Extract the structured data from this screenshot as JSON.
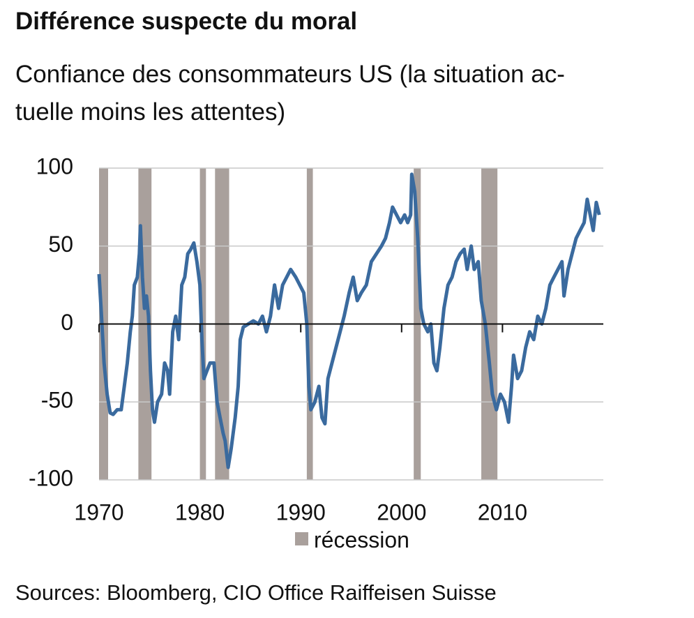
{
  "chart_data": {
    "type": "line",
    "title": "Différence suspecte du moral",
    "subtitle": [
      "Confiance des consommateurs US (la situation ac-",
      "tuelle moins les attentes)"
    ],
    "source": "Sources: Bloomberg, CIO Office Raiffeisen Suisse",
    "xlim": [
      1970,
      2020
    ],
    "xticks": [
      1970,
      1980,
      1990,
      2000,
      2010
    ],
    "ylim": [
      -100,
      100
    ],
    "yticks": [
      -100,
      -50,
      0,
      50,
      100
    ],
    "grid": true,
    "recessions": {
      "name": "récession",
      "color": "#a9a09c",
      "ranges": [
        [
          1970.0,
          1970.9
        ],
        [
          1973.9,
          1975.2
        ],
        [
          1980.0,
          1980.6
        ],
        [
          1981.5,
          1982.9
        ],
        [
          1990.6,
          1991.2
        ],
        [
          2001.2,
          2001.9
        ],
        [
          2007.9,
          2009.5
        ]
      ]
    },
    "series": [
      {
        "color": "#3a6a9e",
        "x": [
          1970.0,
          1970.2,
          1970.5,
          1970.8,
          1971.1,
          1971.4,
          1971.8,
          1972.2,
          1972.5,
          1972.8,
          1973.1,
          1973.3,
          1973.5,
          1973.8,
          1974.0,
          1974.1,
          1974.3,
          1974.5,
          1974.7,
          1974.9,
          1975.1,
          1975.3,
          1975.5,
          1975.8,
          1976.2,
          1976.5,
          1976.8,
          1977.0,
          1977.3,
          1977.6,
          1977.9,
          1978.2,
          1978.5,
          1978.8,
          1979.1,
          1979.4,
          1979.7,
          1980.0,
          1980.2,
          1980.4,
          1980.7,
          1981.0,
          1981.4,
          1981.7,
          1982.0,
          1982.3,
          1982.5,
          1982.8,
          1983.1,
          1983.5,
          1983.8,
          1984.0,
          1984.3,
          1984.8,
          1985.3,
          1985.8,
          1986.2,
          1986.6,
          1987.0,
          1987.4,
          1987.8,
          1988.2,
          1988.6,
          1989.0,
          1989.5,
          1989.9,
          1990.3,
          1990.6,
          1990.8,
          1991.0,
          1991.4,
          1991.8,
          1992.1,
          1992.4,
          1992.7,
          1993.1,
          1993.5,
          1993.9,
          1994.3,
          1994.8,
          1995.2,
          1995.6,
          1996.0,
          1996.5,
          1997.0,
          1997.5,
          1998.0,
          1998.4,
          1998.8,
          1999.1,
          1999.5,
          1999.9,
          2000.3,
          2000.6,
          2000.9,
          2001.0,
          2001.3,
          2001.6,
          2001.9,
          2002.2,
          2002.6,
          2002.9,
          2003.2,
          2003.5,
          2003.8,
          2004.2,
          2004.6,
          2005.0,
          2005.4,
          2005.8,
          2006.2,
          2006.5,
          2006.9,
          2007.2,
          2007.6,
          2007.9,
          2008.3,
          2008.7,
          2009.0,
          2009.4,
          2009.8,
          2010.2,
          2010.6,
          2010.9,
          2011.1,
          2011.5,
          2011.9,
          2012.3,
          2012.7,
          2013.1,
          2013.5,
          2013.9,
          2014.3,
          2014.7,
          2015.1,
          2015.5,
          2015.9,
          2016.1,
          2016.5,
          2016.9,
          2017.3,
          2017.7,
          2018.1,
          2018.4,
          2018.7,
          2019.0,
          2019.3,
          2019.6
        ],
        "values": [
          32,
          10,
          -25,
          -45,
          -57,
          -58,
          -55,
          -55,
          -40,
          -25,
          -5,
          5,
          25,
          30,
          45,
          63,
          30,
          10,
          18,
          5,
          -30,
          -55,
          -63,
          -50,
          -45,
          -25,
          -30,
          -45,
          -5,
          5,
          -10,
          25,
          30,
          45,
          48,
          52,
          40,
          25,
          -10,
          -35,
          -30,
          -25,
          -25,
          -50,
          -60,
          -70,
          -75,
          -92,
          -80,
          -60,
          -40,
          -10,
          -2,
          0,
          2,
          0,
          5,
          -5,
          5,
          25,
          10,
          25,
          30,
          35,
          30,
          25,
          20,
          0,
          -40,
          -55,
          -50,
          -40,
          -60,
          -64,
          -35,
          -25,
          -15,
          -5,
          5,
          20,
          30,
          15,
          20,
          25,
          40,
          45,
          50,
          55,
          65,
          75,
          70,
          65,
          70,
          65,
          70,
          96,
          85,
          55,
          10,
          0,
          -5,
          0,
          -25,
          -30,
          -15,
          10,
          25,
          30,
          40,
          45,
          48,
          35,
          50,
          35,
          40,
          15,
          0,
          -25,
          -45,
          -55,
          -45,
          -50,
          -63,
          -40,
          -20,
          -35,
          -30,
          -15,
          -5,
          -10,
          5,
          0,
          10,
          25,
          30,
          35,
          40,
          18,
          35,
          45,
          55,
          60,
          65,
          80,
          70,
          60,
          78,
          70
        ]
      }
    ]
  }
}
